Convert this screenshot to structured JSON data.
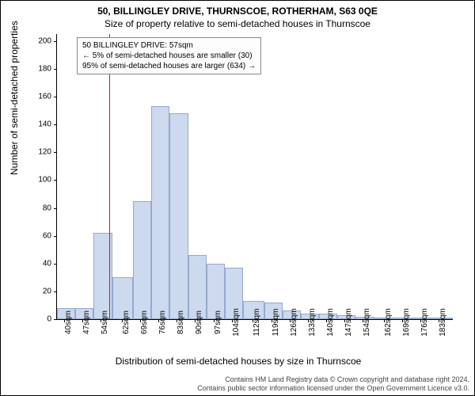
{
  "title": "50, BILLINGLEY DRIVE, THURNSCOE, ROTHERHAM, S63 0QE",
  "subtitle": "Size of property relative to semi-detached houses in Thurnscoe",
  "annotation": {
    "line1": "50 BILLINGLEY DRIVE: 57sqm",
    "line2": "← 5% of semi-detached houses are smaller (30)",
    "line3": "95% of semi-detached houses are larger (634) →"
  },
  "chart": {
    "type": "histogram",
    "ylabel": "Number of semi-detached properties",
    "xlabel": "Distribution of semi-detached houses by size in Thurnscoe",
    "background_color": "#ffffff",
    "bar_fill": "#cdd9ee",
    "bar_border": "#95a9cc",
    "marker_color": "#e01010",
    "marker_x": 57,
    "xlim": [
      37,
      188
    ],
    "ylim": [
      0,
      205
    ],
    "yticks": [
      0,
      20,
      40,
      60,
      80,
      100,
      120,
      140,
      160,
      180,
      200
    ],
    "xticks": [
      40,
      47,
      54,
      62,
      69,
      76,
      83,
      90,
      97,
      104,
      112,
      119,
      126,
      133,
      140,
      147,
      154,
      162,
      169,
      176,
      183
    ],
    "xtick_suffix": "sqm",
    "bars": [
      {
        "x0": 37,
        "x1": 44,
        "h": 8
      },
      {
        "x0": 44,
        "x1": 51,
        "h": 8
      },
      {
        "x0": 51,
        "x1": 58,
        "h": 62
      },
      {
        "x0": 58,
        "x1": 66,
        "h": 30
      },
      {
        "x0": 66,
        "x1": 73,
        "h": 85
      },
      {
        "x0": 73,
        "x1": 80,
        "h": 153
      },
      {
        "x0": 80,
        "x1": 87,
        "h": 148
      },
      {
        "x0": 87,
        "x1": 94,
        "h": 46
      },
      {
        "x0": 94,
        "x1": 101,
        "h": 40
      },
      {
        "x0": 101,
        "x1": 108,
        "h": 37
      },
      {
        "x0": 108,
        "x1": 116,
        "h": 13
      },
      {
        "x0": 116,
        "x1": 123,
        "h": 12
      },
      {
        "x0": 123,
        "x1": 130,
        "h": 6
      },
      {
        "x0": 130,
        "x1": 137,
        "h": 4
      },
      {
        "x0": 137,
        "x1": 144,
        "h": 4
      },
      {
        "x0": 144,
        "x1": 151,
        "h": 3
      },
      {
        "x0": 151,
        "x1": 158,
        "h": 2
      },
      {
        "x0": 158,
        "x1": 166,
        "h": 1
      },
      {
        "x0": 166,
        "x1": 173,
        "h": 1
      },
      {
        "x0": 173,
        "x1": 180,
        "h": 1
      },
      {
        "x0": 180,
        "x1": 188,
        "h": 1
      }
    ],
    "title_fontsize": 12,
    "label_fontsize": 12,
    "tick_fontsize": 10
  },
  "footer": {
    "line1": "Contains HM Land Registry data © Crown copyright and database right 2024.",
    "line2": "Contains public sector information licensed under the Open Government Licence v3.0."
  }
}
